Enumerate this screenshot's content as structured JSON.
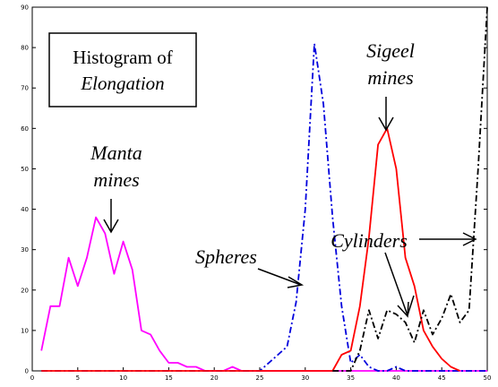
{
  "chart_data": {
    "type": "line",
    "title": "Histogram of Elongation",
    "title_lines": [
      "Histogram of",
      "Elongation"
    ],
    "xlabel": "",
    "ylabel": "",
    "xlim": [
      0,
      50
    ],
    "ylim": [
      0,
      90
    ],
    "xticks": [
      0,
      5,
      10,
      15,
      20,
      25,
      30,
      35,
      40,
      45,
      50
    ],
    "yticks": [
      0,
      10,
      20,
      30,
      40,
      50,
      60,
      70,
      80,
      90
    ],
    "grid": false,
    "series": [
      {
        "color": "#ff00ff",
        "style": "solid",
        "x": [
          1,
          2,
          3,
          4,
          5,
          6,
          7,
          8,
          9,
          10,
          11,
          12,
          13,
          14,
          15,
          16,
          17,
          18,
          19,
          20,
          21,
          22,
          23,
          24,
          25,
          26,
          27,
          28,
          29,
          30,
          31,
          32,
          33,
          34,
          35,
          36,
          37,
          38,
          39,
          40,
          41,
          42,
          43,
          44,
          45,
          46,
          47,
          48,
          49,
          50
        ],
        "y": [
          5,
          16,
          16,
          28,
          21,
          28,
          38,
          34,
          24,
          32,
          25,
          10,
          9,
          5,
          2,
          2,
          1,
          1,
          0,
          0,
          0,
          1,
          0,
          0,
          0,
          0,
          0,
          0,
          0,
          0,
          0,
          0,
          0,
          0,
          0,
          0,
          0,
          0,
          0,
          0,
          0,
          0,
          0,
          0,
          0,
          0,
          0,
          0,
          0,
          0
        ]
      },
      {
        "color": "#0000dd",
        "style": "dashdot",
        "x": [
          1,
          5,
          10,
          15,
          20,
          25,
          26,
          27,
          28,
          29,
          30,
          31,
          32,
          33,
          34,
          35,
          36,
          37,
          38,
          39,
          40,
          41,
          42,
          43,
          44,
          45,
          46,
          47,
          48,
          49,
          50
        ],
        "y": [
          0,
          0,
          0,
          0,
          0,
          0,
          2,
          4,
          6,
          17,
          40,
          81,
          66,
          38,
          16,
          2,
          4,
          1,
          0,
          0,
          1,
          0,
          0,
          0,
          0,
          0,
          0,
          0,
          0,
          0,
          0
        ]
      },
      {
        "color": "#ff0000",
        "style": "solid",
        "x": [
          1,
          5,
          10,
          15,
          20,
          25,
          30,
          33,
          34,
          35,
          36,
          37,
          38,
          39,
          40,
          41,
          42,
          43,
          44,
          45,
          46,
          47,
          48,
          49,
          50
        ],
        "y": [
          0,
          0,
          0,
          0,
          0,
          0,
          0,
          0,
          4,
          5,
          16,
          33,
          56,
          60,
          50,
          28,
          21,
          10,
          6,
          3,
          1,
          0,
          0,
          0,
          0
        ],
        "x_end": 47
      },
      {
        "color": "#000000",
        "style": "dashdot",
        "x": [
          33,
          34,
          35,
          36,
          37,
          38,
          39,
          40,
          41,
          42,
          43,
          44,
          45,
          46,
          47,
          48,
          49,
          50
        ],
        "y": [
          0,
          0,
          0,
          5,
          15,
          8,
          15,
          14,
          12,
          7,
          15,
          9,
          13,
          19,
          12,
          15,
          50,
          90
        ]
      }
    ],
    "annotations": [
      {
        "lines": [
          "Manta",
          "mines"
        ]
      },
      {
        "lines": [
          "Sigeel",
          "mines"
        ]
      },
      {
        "lines": [
          "Spheres"
        ]
      },
      {
        "lines": [
          "Cylinders"
        ]
      }
    ]
  }
}
